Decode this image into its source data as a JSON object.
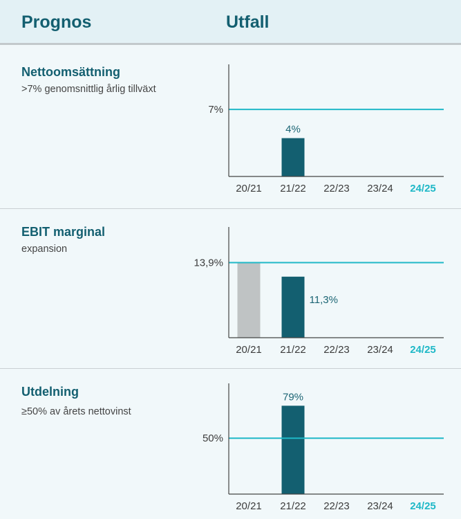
{
  "header": {
    "left_title": "Prognos",
    "right_title": "Utfall"
  },
  "colors": {
    "bar_primary": "#135f70",
    "bar_secondary": "#bfc3c4",
    "reference_line": "#1fb8c7",
    "current_year": "#1fb8c7",
    "axis": "#444444"
  },
  "sections": [
    {
      "title": "Nettoomsättning",
      "description": ">7% genomsnittlig årlig tillväxt"
    },
    {
      "title": "EBIT marginal",
      "description": "expansion"
    },
    {
      "title": "Utdelning",
      "description": "≥50% av årets nettovinst"
    }
  ],
  "chart_data": [
    {
      "type": "bar",
      "categories": [
        "20/21",
        "21/22",
        "22/23",
        "23/24",
        "24/25"
      ],
      "highlight_category": "24/25",
      "values": [
        null,
        4,
        null,
        null,
        null
      ],
      "value_labels": [
        "",
        "4%",
        "",
        "",
        ""
      ],
      "reference_value": 7,
      "reference_label": "7%",
      "ylim": [
        0,
        11.7
      ]
    },
    {
      "type": "bar",
      "categories": [
        "20/21",
        "21/22",
        "22/23",
        "23/24",
        "24/25"
      ],
      "highlight_category": "24/25",
      "values": [
        13.9,
        11.3,
        null,
        null,
        null
      ],
      "value_labels": [
        "",
        "11,3%",
        "",
        "",
        ""
      ],
      "bar_colors": [
        "secondary",
        "primary",
        "primary",
        "primary",
        "primary"
      ],
      "reference_value": 13.9,
      "reference_label": "13,9%",
      "ylim": [
        0,
        20.5
      ]
    },
    {
      "type": "bar",
      "categories": [
        "20/21",
        "21/22",
        "22/23",
        "23/24",
        "24/25"
      ],
      "highlight_category": "24/25",
      "values": [
        null,
        79,
        null,
        null,
        null
      ],
      "value_labels": [
        "",
        "79%",
        "",
        "",
        ""
      ],
      "reference_value": 50,
      "reference_label": "50%",
      "ylim": [
        0,
        99
      ]
    }
  ]
}
